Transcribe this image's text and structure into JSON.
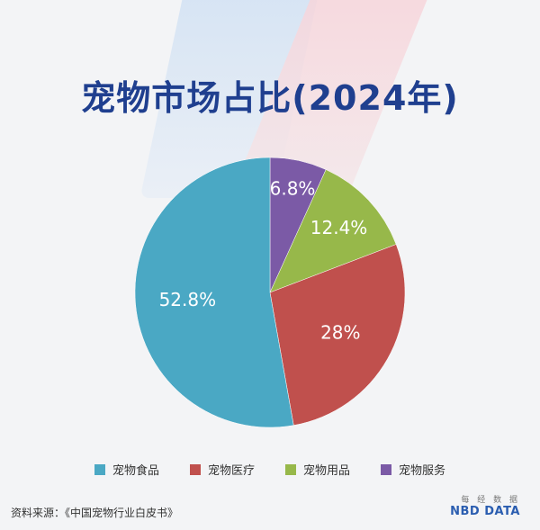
{
  "title": "宠物市场占比(2024年)",
  "chart_data": {
    "type": "pie",
    "title": "宠物市场占比(2024年)",
    "start_angle_deg": 0,
    "direction": "clockwise",
    "slices": [
      {
        "name": "宠物服务",
        "value": 6.8,
        "label": "6.8%",
        "color": "#7b5aa6"
      },
      {
        "name": "宠物用品",
        "value": 12.4,
        "label": "12.4%",
        "color": "#97b84a"
      },
      {
        "name": "宠物医疗",
        "value": 28,
        "label": "28%",
        "color": "#c0504d"
      },
      {
        "name": "宠物食品",
        "value": 52.8,
        "label": "52.8%",
        "color": "#4aa8c4"
      }
    ],
    "legend": {
      "position": "bottom",
      "order": [
        "宠物食品",
        "宠物医疗",
        "宠物用品",
        "宠物服务"
      ]
    }
  },
  "legend": [
    {
      "label": "宠物食品",
      "color": "#4aa8c4"
    },
    {
      "label": "宠物医疗",
      "color": "#c0504d"
    },
    {
      "label": "宠物用品",
      "color": "#97b84a"
    },
    {
      "label": "宠物服务",
      "color": "#7b5aa6"
    }
  ],
  "footer": {
    "source": "资料来源：《中国宠物行业白皮书》",
    "logo_top": "每 经 数 据",
    "logo_main": "NBD DATA"
  }
}
